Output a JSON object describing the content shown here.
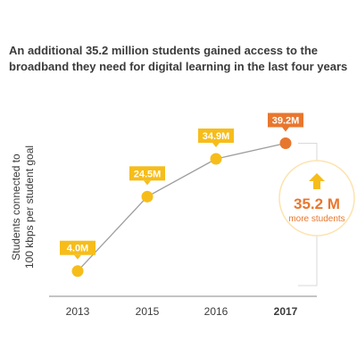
{
  "title_lines": [
    "An additional 35.2 million students gained access to the",
    "broadband they need for digital learning in the last four years"
  ],
  "chart_data": {
    "type": "line",
    "title": "An additional 35.2 million students gained access to the broadband they need for digital learning in the last four years",
    "ylabel_lines": [
      "Students connected to",
      "100 kbps per student goal"
    ],
    "xlabel": "",
    "categories": [
      "2013",
      "2015",
      "2016",
      "2017"
    ],
    "values": [
      4.0,
      24.5,
      34.9,
      39.2
    ],
    "data_labels": [
      "4.0M",
      "24.5M",
      "34.9M",
      "39.2M"
    ],
    "ylim": [
      0,
      44
    ],
    "grid": false,
    "highlight_category": "2017",
    "annotation": {
      "value": "35.2 M",
      "text": "more students",
      "icon": "up-arrow-icon"
    }
  },
  "colors": {
    "accent": "#f6bd1a",
    "highlight": "#e8772e",
    "line": "#9d9d9d",
    "axis": "#8a8a8a",
    "text": "#3b3b3b",
    "bracket": "#d9d9d9",
    "halo": "#fde3b0"
  }
}
